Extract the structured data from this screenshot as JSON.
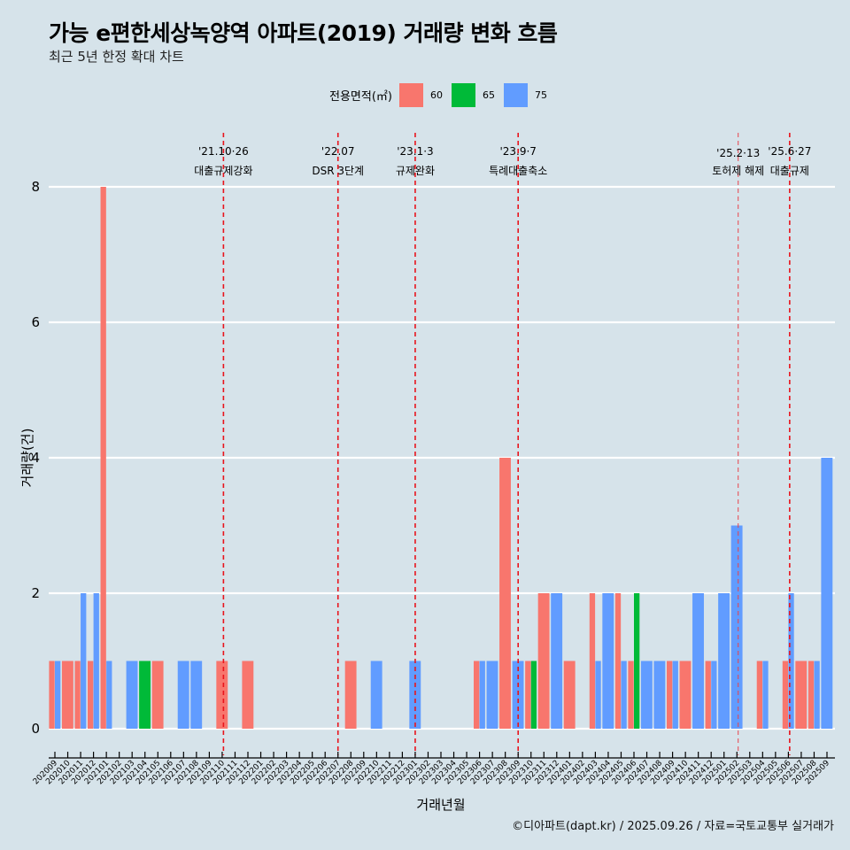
{
  "header": {
    "title": "가능 e편한세상녹양역 아파트(2019) 거래량 변화 흐름",
    "subtitle": "최근 5년 한정 확대 차트"
  },
  "legend": {
    "title": "전용면적(㎡)",
    "items": [
      {
        "label": "60",
        "color": "#f8766d"
      },
      {
        "label": "65",
        "color": "#00ba38"
      },
      {
        "label": "75",
        "color": "#619cff"
      }
    ]
  },
  "footer": "©디아파트(dapt.kr) / 2025.09.26 / 자료=국토교통부 실거래가",
  "chart_data": {
    "type": "bar",
    "title": "가능 e편한세상녹양역 아파트(2019) 거래량 변화 흐름",
    "subtitle": "최근 5년 한정 확대 차트",
    "xlabel": "거래년월",
    "ylabel": "거래량(건)",
    "ylim": [
      0,
      8
    ],
    "yticks": [
      0,
      2,
      4,
      6,
      8
    ],
    "grid": true,
    "legend_position": "top",
    "bar_mode": "dodge",
    "categories": [
      "202009",
      "202010",
      "202011",
      "202012",
      "202101",
      "202102",
      "202103",
      "202104",
      "202105",
      "202106",
      "202107",
      "202108",
      "202109",
      "202110",
      "202111",
      "202112",
      "202201",
      "202202",
      "202203",
      "202204",
      "202205",
      "202206",
      "202207",
      "202208",
      "202209",
      "202210",
      "202211",
      "202212",
      "202301",
      "202302",
      "202303",
      "202304",
      "202305",
      "202306",
      "202307",
      "202308",
      "202309",
      "202310",
      "202311",
      "202312",
      "202401",
      "202402",
      "202403",
      "202404",
      "202405",
      "202406",
      "202407",
      "202408",
      "202409",
      "202410",
      "202411",
      "202412",
      "202501",
      "202502",
      "202503",
      "202504",
      "202505",
      "202506",
      "202507",
      "202508",
      "202509"
    ],
    "series": [
      {
        "name": "60",
        "color": "#f8766d",
        "values": [
          1,
          1,
          1,
          1,
          8,
          0,
          0,
          0,
          1,
          0,
          0,
          0,
          0,
          1,
          0,
          1,
          0,
          0,
          0,
          0,
          0,
          0,
          0,
          1,
          0,
          0,
          0,
          0,
          0,
          0,
          0,
          0,
          0,
          1,
          0,
          4,
          0,
          1,
          2,
          0,
          1,
          0,
          2,
          0,
          2,
          1,
          0,
          0,
          1,
          1,
          0,
          1,
          0,
          0,
          0,
          1,
          0,
          1,
          1,
          1,
          0
        ]
      },
      {
        "name": "65",
        "color": "#00ba38",
        "values": [
          0,
          0,
          0,
          0,
          0,
          0,
          0,
          1,
          0,
          0,
          0,
          0,
          0,
          0,
          0,
          0,
          0,
          0,
          0,
          0,
          0,
          0,
          0,
          0,
          0,
          0,
          0,
          0,
          0,
          0,
          0,
          0,
          0,
          0,
          0,
          0,
          0,
          1,
          0,
          0,
          0,
          0,
          0,
          0,
          0,
          2,
          0,
          0,
          0,
          0,
          0,
          0,
          0,
          0,
          0,
          0,
          0,
          0,
          0,
          0,
          0
        ]
      },
      {
        "name": "75",
        "color": "#619cff",
        "values": [
          1,
          0,
          2,
          2,
          1,
          0,
          1,
          0,
          0,
          0,
          1,
          1,
          0,
          0,
          0,
          0,
          0,
          0,
          0,
          0,
          0,
          0,
          0,
          0,
          0,
          1,
          0,
          0,
          1,
          0,
          0,
          0,
          0,
          1,
          1,
          0,
          1,
          0,
          0,
          2,
          0,
          0,
          1,
          2,
          1,
          0,
          1,
          1,
          1,
          0,
          2,
          1,
          2,
          3,
          0,
          1,
          0,
          2,
          0,
          1,
          4
        ]
      }
    ],
    "annotations": [
      {
        "date": "'21.10·26",
        "label": "대출규제강화",
        "month": "202110",
        "offset": 0.1
      },
      {
        "date": "'22.07",
        "label": "DSR 3단계",
        "month": "202207",
        "offset": 0
      },
      {
        "date": "'23.1·3",
        "label": "규제완화",
        "month": "202301",
        "offset": 0
      },
      {
        "date": "'23.9·7",
        "label": "특례대출축소",
        "month": "202309",
        "offset": 0
      },
      {
        "date": "'25.2·13",
        "label": "토허제 해제",
        "month": "202502",
        "offset": 0.1,
        "light": true
      },
      {
        "date": "'25.6·27",
        "label": "대출규제",
        "month": "202506",
        "offset": 0.1
      }
    ]
  }
}
